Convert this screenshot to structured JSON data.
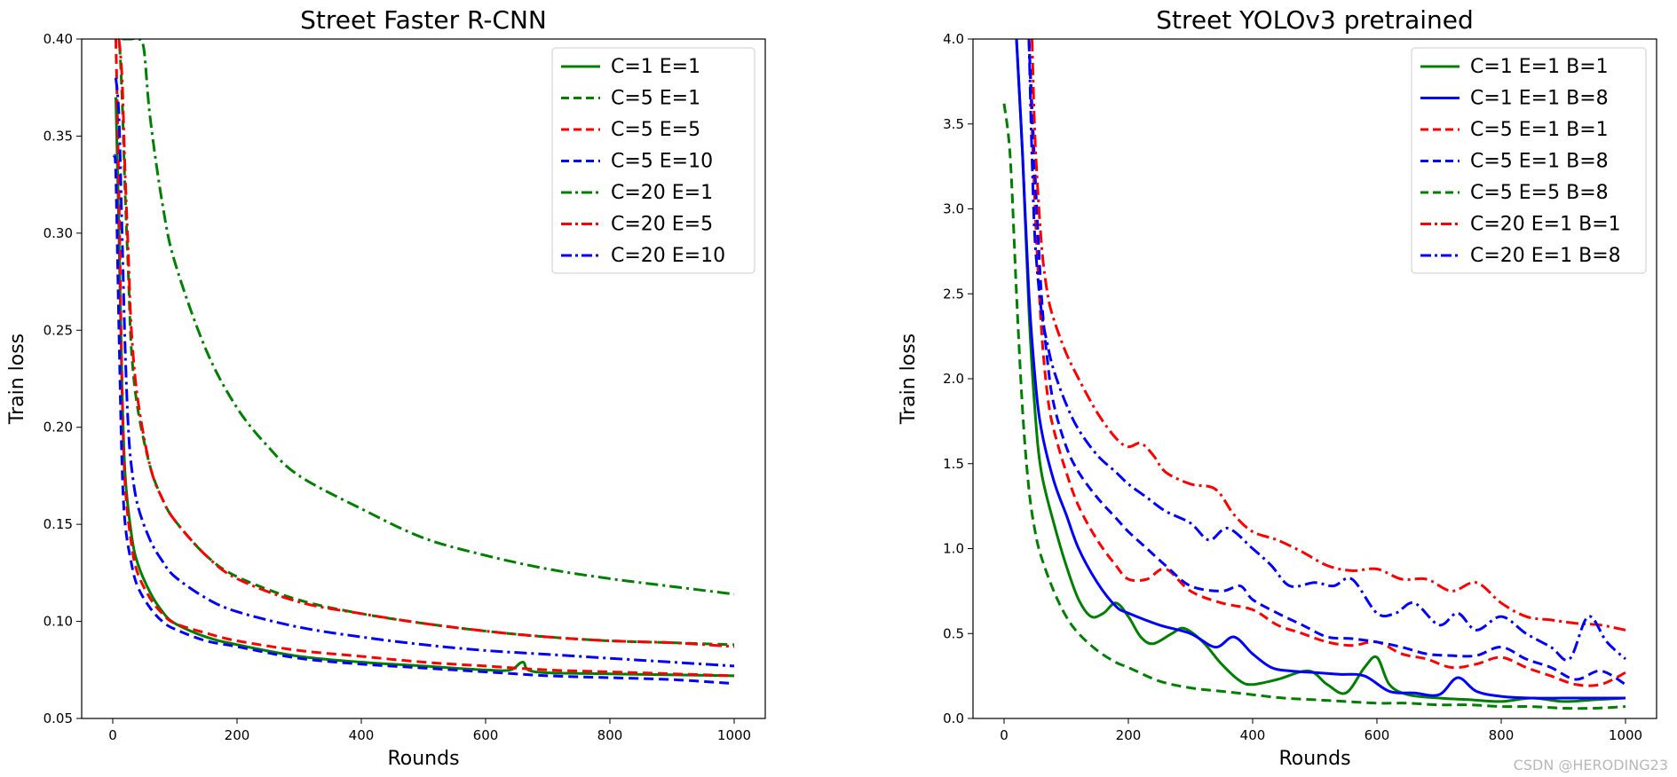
{
  "watermark": "CSDN @HERODING23",
  "chart_data": [
    {
      "type": "line",
      "title": "Street Faster R-CNN",
      "xlabel": "Rounds",
      "ylabel": "Train loss",
      "xlim": [
        -50,
        1050
      ],
      "ylim": [
        0.05,
        0.4
      ],
      "xticks": [
        0,
        200,
        400,
        600,
        800,
        1000
      ],
      "yticks": [
        0.05,
        0.1,
        0.15,
        0.2,
        0.25,
        0.3,
        0.35,
        0.4
      ],
      "ytick_labels": [
        "0.05",
        "0.10",
        "0.15",
        "0.20",
        "0.25",
        "0.30",
        "0.35",
        "0.40"
      ],
      "legend_position": "top-right",
      "series": [
        {
          "name": "C=1 E=1",
          "color": "#008000",
          "dash": "solid",
          "x": [
            5,
            10,
            15,
            20,
            30,
            40,
            60,
            80,
            100,
            150,
            200,
            300,
            400,
            500,
            600,
            640,
            660,
            680,
            800,
            1000
          ],
          "y": [
            0.37,
            0.3,
            0.22,
            0.175,
            0.145,
            0.13,
            0.115,
            0.105,
            0.099,
            0.092,
            0.088,
            0.082,
            0.079,
            0.077,
            0.075,
            0.075,
            0.079,
            0.074,
            0.073,
            0.072
          ]
        },
        {
          "name": "C=5 E=1",
          "color": "#008000",
          "dash": "dashed",
          "x": [
            5,
            10,
            15,
            20,
            25,
            30,
            40,
            60,
            80,
            100,
            150,
            200,
            300,
            400,
            500,
            600,
            700,
            800,
            900,
            1000
          ],
          "y": [
            0.4,
            0.4,
            0.37,
            0.32,
            0.28,
            0.24,
            0.21,
            0.18,
            0.163,
            0.152,
            0.134,
            0.123,
            0.111,
            0.104,
            0.099,
            0.095,
            0.092,
            0.09,
            0.089,
            0.088
          ]
        },
        {
          "name": "C=5 E=5",
          "color": "#ff0000",
          "dash": "dashed",
          "x": [
            5,
            10,
            15,
            20,
            30,
            40,
            60,
            80,
            100,
            150,
            200,
            300,
            400,
            500,
            600,
            700,
            800,
            900,
            1000
          ],
          "y": [
            0.4,
            0.32,
            0.22,
            0.17,
            0.14,
            0.125,
            0.112,
            0.104,
            0.099,
            0.094,
            0.09,
            0.085,
            0.082,
            0.079,
            0.077,
            0.075,
            0.074,
            0.073,
            0.072
          ]
        },
        {
          "name": "C=5 E=10",
          "color": "#0000ff",
          "dash": "dashed",
          "x": [
            2,
            5,
            10,
            15,
            20,
            30,
            40,
            60,
            80,
            100,
            150,
            200,
            300,
            400,
            500,
            600,
            700,
            800,
            900,
            1000
          ],
          "y": [
            0.34,
            0.33,
            0.25,
            0.18,
            0.15,
            0.13,
            0.118,
            0.107,
            0.1,
            0.096,
            0.09,
            0.087,
            0.081,
            0.078,
            0.076,
            0.074,
            0.072,
            0.071,
            0.07,
            0.068
          ]
        },
        {
          "name": "C=20 E=1",
          "color": "#008000",
          "dash": "dashdot",
          "x": [
            15,
            20,
            30,
            40,
            50,
            60,
            80,
            100,
            150,
            200,
            250,
            300,
            400,
            500,
            600,
            700,
            800,
            900,
            1000
          ],
          "y": [
            0.4,
            0.4,
            0.4,
            0.4,
            0.395,
            0.36,
            0.315,
            0.285,
            0.24,
            0.21,
            0.19,
            0.175,
            0.158,
            0.143,
            0.134,
            0.127,
            0.122,
            0.118,
            0.114
          ]
        },
        {
          "name": "C=20 E=5",
          "color": "#ff0000",
          "dash": "dashdot",
          "x": [
            10,
            15,
            20,
            25,
            30,
            40,
            60,
            80,
            100,
            150,
            200,
            300,
            400,
            500,
            600,
            700,
            800,
            900,
            1000
          ],
          "y": [
            0.4,
            0.38,
            0.33,
            0.29,
            0.25,
            0.215,
            0.18,
            0.163,
            0.152,
            0.134,
            0.122,
            0.11,
            0.104,
            0.099,
            0.095,
            0.092,
            0.09,
            0.089,
            0.087
          ]
        },
        {
          "name": "C=20 E=10",
          "color": "#0000ff",
          "dash": "dashdot",
          "x": [
            5,
            10,
            15,
            20,
            25,
            30,
            40,
            60,
            80,
            100,
            150,
            200,
            300,
            400,
            500,
            600,
            700,
            800,
            900,
            1000
          ],
          "y": [
            0.38,
            0.36,
            0.3,
            0.24,
            0.2,
            0.18,
            0.16,
            0.142,
            0.131,
            0.123,
            0.112,
            0.105,
            0.097,
            0.092,
            0.088,
            0.085,
            0.083,
            0.081,
            0.079,
            0.077
          ]
        }
      ]
    },
    {
      "type": "line",
      "title": "Street YOLOv3 pretrained",
      "xlabel": "Rounds",
      "ylabel": "Train loss",
      "xlim": [
        -50,
        1050
      ],
      "ylim": [
        0.0,
        4.0
      ],
      "xticks": [
        0,
        200,
        400,
        600,
        800,
        1000
      ],
      "yticks": [
        0.0,
        0.5,
        1.0,
        1.5,
        2.0,
        2.5,
        3.0,
        3.5,
        4.0
      ],
      "ytick_labels": [
        "0.0",
        "0.5",
        "1.0",
        "1.5",
        "2.0",
        "2.5",
        "3.0",
        "3.5",
        "4.0"
      ],
      "legend_position": "top-right",
      "series": [
        {
          "name": "C=1 E=1 B=1",
          "color": "#008000",
          "dash": "solid",
          "x": [
            20,
            30,
            40,
            50,
            60,
            80,
            100,
            120,
            140,
            160,
            180,
            200,
            220,
            240,
            270,
            290,
            320,
            350,
            380,
            400,
            440,
            490,
            520,
            550,
            580,
            600,
            620,
            650,
            700,
            750,
            800,
            850,
            900,
            950,
            1000
          ],
          "y": [
            4.0,
            3.3,
            2.4,
            1.8,
            1.45,
            1.15,
            0.9,
            0.7,
            0.6,
            0.62,
            0.68,
            0.6,
            0.48,
            0.44,
            0.5,
            0.53,
            0.45,
            0.32,
            0.22,
            0.2,
            0.23,
            0.28,
            0.2,
            0.15,
            0.3,
            0.36,
            0.2,
            0.14,
            0.12,
            0.11,
            0.1,
            0.12,
            0.1,
            0.11,
            0.12
          ]
        },
        {
          "name": "C=1 E=1 B=8",
          "color": "#0000ff",
          "dash": "solid",
          "x": [
            20,
            30,
            40,
            50,
            60,
            80,
            100,
            120,
            150,
            180,
            200,
            250,
            300,
            340,
            370,
            400,
            430,
            460,
            500,
            540,
            580,
            620,
            660,
            700,
            730,
            760,
            800,
            850,
            900,
            950,
            1000
          ],
          "y": [
            4.0,
            3.3,
            2.5,
            2.0,
            1.7,
            1.4,
            1.2,
            1.0,
            0.8,
            0.66,
            0.62,
            0.55,
            0.5,
            0.42,
            0.48,
            0.38,
            0.3,
            0.28,
            0.27,
            0.26,
            0.25,
            0.16,
            0.15,
            0.14,
            0.24,
            0.16,
            0.13,
            0.12,
            0.12,
            0.12,
            0.12
          ]
        },
        {
          "name": "C=5 E=1 B=1",
          "color": "#ff0000",
          "dash": "dashed",
          "x": [
            40,
            50,
            60,
            70,
            80,
            100,
            120,
            150,
            180,
            200,
            230,
            260,
            300,
            350,
            400,
            440,
            480,
            520,
            560,
            600,
            640,
            680,
            720,
            760,
            800,
            840,
            880,
            920,
            960,
            1000
          ],
          "y": [
            4.0,
            3.0,
            2.3,
            1.9,
            1.7,
            1.45,
            1.25,
            1.05,
            0.9,
            0.82,
            0.82,
            0.88,
            0.75,
            0.68,
            0.64,
            0.55,
            0.5,
            0.45,
            0.43,
            0.45,
            0.38,
            0.35,
            0.3,
            0.32,
            0.36,
            0.3,
            0.25,
            0.2,
            0.2,
            0.27
          ]
        },
        {
          "name": "C=5 E=1 B=8",
          "color": "#0000ff",
          "dash": "dashed",
          "x": [
            40,
            50,
            60,
            70,
            80,
            100,
            120,
            150,
            180,
            200,
            230,
            260,
            300,
            350,
            380,
            400,
            440,
            480,
            520,
            560,
            600,
            640,
            680,
            720,
            760,
            800,
            840,
            880,
            920,
            960,
            1000
          ],
          "y": [
            4.0,
            3.2,
            2.5,
            2.1,
            1.85,
            1.6,
            1.45,
            1.3,
            1.18,
            1.1,
            1.0,
            0.9,
            0.78,
            0.75,
            0.78,
            0.7,
            0.62,
            0.55,
            0.48,
            0.47,
            0.45,
            0.42,
            0.38,
            0.37,
            0.37,
            0.42,
            0.35,
            0.3,
            0.23,
            0.28,
            0.2
          ]
        },
        {
          "name": "C=5 E=5 B=8",
          "color": "#008000",
          "dash": "dashed",
          "x": [
            0,
            10,
            20,
            30,
            40,
            50,
            60,
            80,
            100,
            120,
            150,
            180,
            200,
            250,
            300,
            350,
            400,
            450,
            500,
            550,
            600,
            650,
            700,
            750,
            800,
            850,
            900,
            950,
            1000
          ],
          "y": [
            3.62,
            3.3,
            2.5,
            1.8,
            1.35,
            1.1,
            0.95,
            0.75,
            0.6,
            0.5,
            0.4,
            0.33,
            0.3,
            0.22,
            0.18,
            0.16,
            0.14,
            0.12,
            0.11,
            0.1,
            0.09,
            0.09,
            0.08,
            0.08,
            0.07,
            0.07,
            0.06,
            0.06,
            0.07
          ]
        },
        {
          "name": "C=20 E=1 B=1",
          "color": "#ff0000",
          "dash": "dashdot",
          "x": [
            45,
            50,
            60,
            70,
            80,
            100,
            120,
            150,
            180,
            200,
            220,
            240,
            260,
            300,
            340,
            370,
            400,
            440,
            480,
            520,
            560,
            600,
            640,
            680,
            720,
            760,
            800,
            840,
            880,
            920,
            960,
            1000
          ],
          "y": [
            4.0,
            3.4,
            2.8,
            2.5,
            2.35,
            2.15,
            2.0,
            1.8,
            1.65,
            1.6,
            1.62,
            1.55,
            1.45,
            1.38,
            1.35,
            1.2,
            1.1,
            1.05,
            0.98,
            0.9,
            0.87,
            0.88,
            0.82,
            0.82,
            0.75,
            0.8,
            0.68,
            0.6,
            0.58,
            0.56,
            0.55,
            0.52
          ]
        },
        {
          "name": "C=20 E=1 B=8",
          "color": "#0000ff",
          "dash": "dashdot",
          "x": [
            40,
            45,
            50,
            60,
            70,
            80,
            100,
            120,
            150,
            180,
            200,
            230,
            260,
            300,
            330,
            360,
            400,
            430,
            460,
            500,
            530,
            560,
            600,
            630,
            660,
            700,
            730,
            760,
            800,
            840,
            880,
            910,
            940,
            970,
            1000
          ],
          "y": [
            4.0,
            3.3,
            2.8,
            2.4,
            2.2,
            2.05,
            1.85,
            1.7,
            1.55,
            1.45,
            1.38,
            1.3,
            1.22,
            1.15,
            1.05,
            1.12,
            1.0,
            0.9,
            0.78,
            0.8,
            0.78,
            0.82,
            0.62,
            0.62,
            0.68,
            0.55,
            0.62,
            0.52,
            0.6,
            0.5,
            0.42,
            0.35,
            0.6,
            0.45,
            0.35
          ]
        }
      ]
    }
  ]
}
